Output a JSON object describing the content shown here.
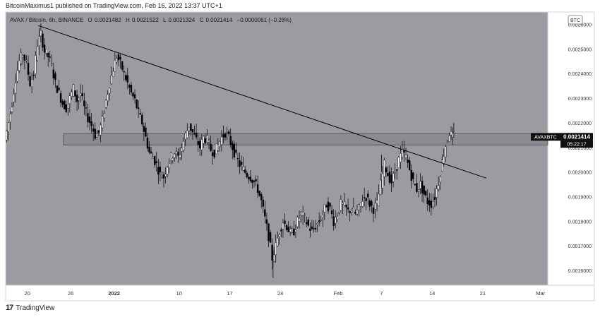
{
  "header": {
    "publisher": "BitcoinMaximus1 published on TradingView.com, Feb 16, 2022 13:37 UTC+1"
  },
  "legend": {
    "symbol": "AVAX / Bitcoin, 6h, BINANCE",
    "o_label": "O",
    "o": "0.0021482",
    "h_label": "H",
    "h": "0.0021522",
    "l_label": "L",
    "l": "0.0021324",
    "c_label": "C",
    "c": "0.0021414",
    "change": "−0.0000061 (−0.28%)"
  },
  "currency_badge": "BTC",
  "price_tag": {
    "symbol": "AVAXBTC",
    "price": "0.0021414",
    "countdown": "05:22:17"
  },
  "footer": {
    "logo": "17",
    "brand": "TradingView"
  },
  "colors": {
    "plot_bg": "#9a9ca1",
    "candle": "#000000",
    "zone": "#8a8c91",
    "trendline": "#000000",
    "panel": "#ffffff"
  },
  "chart_data": {
    "type": "candlestick",
    "timeframe": "6h",
    "ylim": [
      0.00154,
      0.00265
    ],
    "y_ticks": [
      "0.0026000",
      "0.0025000",
      "0.0024000",
      "0.0023000",
      "0.0022000",
      "0.0021000",
      "0.0020000",
      "0.0019000",
      "0.0018000",
      "0.0017000",
      "0.0016000"
    ],
    "y_tick_values": [
      0.0026,
      0.0025,
      0.0024,
      0.0023,
      0.0022,
      0.0021,
      0.002,
      0.0019,
      0.0018,
      0.0017,
      0.0016
    ],
    "x_ticks": [
      "20",
      "26",
      "2022",
      "10",
      "17",
      "24",
      "Feb",
      "7",
      "14",
      "21",
      "Mar"
    ],
    "x_tick_days": [
      0,
      6,
      12,
      21,
      28,
      35,
      43,
      49,
      56,
      63,
      71
    ],
    "x_range_days": [
      -3,
      72
    ],
    "horizontal_zone": {
      "from_day": 5,
      "to_day": 72,
      "low": 0.00211,
      "high": 0.002155
    },
    "trendline": [
      {
        "day": 1.5,
        "price": 0.002595
      },
      {
        "day": 63.5,
        "price": 0.001975
      }
    ],
    "last_price": 0.0021414,
    "candles_close_path": [
      [
        -3.0,
        0.00213
      ],
      [
        -2.5,
        0.0022
      ],
      [
        -2.0,
        0.00228
      ],
      [
        -1.5,
        0.00238
      ],
      [
        -1.0,
        0.00245
      ],
      [
        -0.5,
        0.00248
      ],
      [
        0.0,
        0.00244
      ],
      [
        0.5,
        0.00236
      ],
      [
        1.0,
        0.0024
      ],
      [
        1.5,
        0.00252
      ],
      [
        2.0,
        0.00256
      ],
      [
        2.5,
        0.00249
      ],
      [
        3.0,
        0.00247
      ],
      [
        3.5,
        0.00243
      ],
      [
        4.0,
        0.00236
      ],
      [
        4.5,
        0.00232
      ],
      [
        5.0,
        0.00228
      ],
      [
        5.5,
        0.00226
      ],
      [
        6.0,
        0.0023
      ],
      [
        6.5,
        0.00234
      ],
      [
        7.0,
        0.00229
      ],
      [
        7.5,
        0.00232
      ],
      [
        8.0,
        0.00226
      ],
      [
        8.5,
        0.00222
      ],
      [
        9.0,
        0.00219
      ],
      [
        9.5,
        0.00215
      ],
      [
        10.0,
        0.00216
      ],
      [
        10.5,
        0.00221
      ],
      [
        11.0,
        0.00229
      ],
      [
        11.5,
        0.00236
      ],
      [
        12.0,
        0.00242
      ],
      [
        12.5,
        0.00247
      ],
      [
        13.0,
        0.00244
      ],
      [
        13.5,
        0.0024
      ],
      [
        14.0,
        0.00236
      ],
      [
        14.5,
        0.00232
      ],
      [
        15.0,
        0.00229
      ],
      [
        15.5,
        0.00224
      ],
      [
        16.0,
        0.0022
      ],
      [
        16.5,
        0.00214
      ],
      [
        17.0,
        0.00208
      ],
      [
        17.5,
        0.00206
      ],
      [
        18.0,
        0.00203
      ],
      [
        18.5,
        0.00199
      ],
      [
        19.0,
        0.00198
      ],
      [
        19.5,
        0.00203
      ],
      [
        20.0,
        0.00206
      ],
      [
        20.5,
        0.00208
      ],
      [
        21.0,
        0.00206
      ],
      [
        21.5,
        0.0021
      ],
      [
        22.0,
        0.00215
      ],
      [
        22.5,
        0.00219
      ],
      [
        23.0,
        0.00216
      ],
      [
        23.5,
        0.00213
      ],
      [
        24.0,
        0.0021
      ],
      [
        24.5,
        0.00214
      ],
      [
        25.0,
        0.00213
      ],
      [
        25.5,
        0.00209
      ],
      [
        26.0,
        0.00208
      ],
      [
        26.5,
        0.00211
      ],
      [
        27.0,
        0.00214
      ],
      [
        27.5,
        0.00216
      ],
      [
        28.0,
        0.00214
      ],
      [
        28.5,
        0.0021
      ],
      [
        29.0,
        0.00206
      ],
      [
        29.5,
        0.00203
      ],
      [
        30.0,
        0.00201
      ],
      [
        30.5,
        0.00199
      ],
      [
        31.0,
        0.00198
      ],
      [
        31.5,
        0.00196
      ],
      [
        32.0,
        0.00193
      ],
      [
        32.5,
        0.00188
      ],
      [
        33.0,
        0.00181
      ],
      [
        33.5,
        0.00174
      ],
      [
        34.0,
        0.00165
      ],
      [
        34.5,
        0.0017
      ],
      [
        35.0,
        0.00176
      ],
      [
        35.5,
        0.0018
      ],
      [
        36.0,
        0.00178
      ],
      [
        36.5,
        0.00175
      ],
      [
        37.0,
        0.00176
      ],
      [
        37.5,
        0.0018
      ],
      [
        38.0,
        0.00183
      ],
      [
        38.5,
        0.00181
      ],
      [
        39.0,
        0.00178
      ],
      [
        39.5,
        0.00176
      ],
      [
        40.0,
        0.00178
      ],
      [
        40.5,
        0.0018
      ],
      [
        41.0,
        0.00183
      ],
      [
        41.5,
        0.00187
      ],
      [
        42.0,
        0.00185
      ],
      [
        42.5,
        0.0018
      ],
      [
        43.0,
        0.00183
      ],
      [
        43.5,
        0.00187
      ],
      [
        44.0,
        0.00186
      ],
      [
        44.5,
        0.00184
      ],
      [
        45.0,
        0.00185
      ],
      [
        45.5,
        0.00183
      ],
      [
        46.0,
        0.00185
      ],
      [
        46.5,
        0.00189
      ],
      [
        47.0,
        0.0019
      ],
      [
        47.5,
        0.00187
      ],
      [
        48.0,
        0.00185
      ],
      [
        48.5,
        0.00187
      ],
      [
        49.0,
        0.00195
      ],
      [
        49.5,
        0.00203
      ],
      [
        50.0,
        0.00199
      ],
      [
        50.5,
        0.00196
      ],
      [
        51.0,
        0.002
      ],
      [
        51.5,
        0.00205
      ],
      [
        52.0,
        0.00208
      ],
      [
        52.5,
        0.00206
      ],
      [
        53.0,
        0.00201
      ],
      [
        53.5,
        0.00196
      ],
      [
        54.0,
        0.00193
      ],
      [
        54.5,
        0.00195
      ],
      [
        55.0,
        0.00191
      ],
      [
        55.5,
        0.00188
      ],
      [
        56.0,
        0.00187
      ],
      [
        56.5,
        0.0019
      ],
      [
        57.0,
        0.00196
      ],
      [
        57.5,
        0.00204
      ],
      [
        58.0,
        0.00211
      ],
      [
        58.5,
        0.00216
      ],
      [
        59.0,
        0.00214
      ]
    ]
  }
}
